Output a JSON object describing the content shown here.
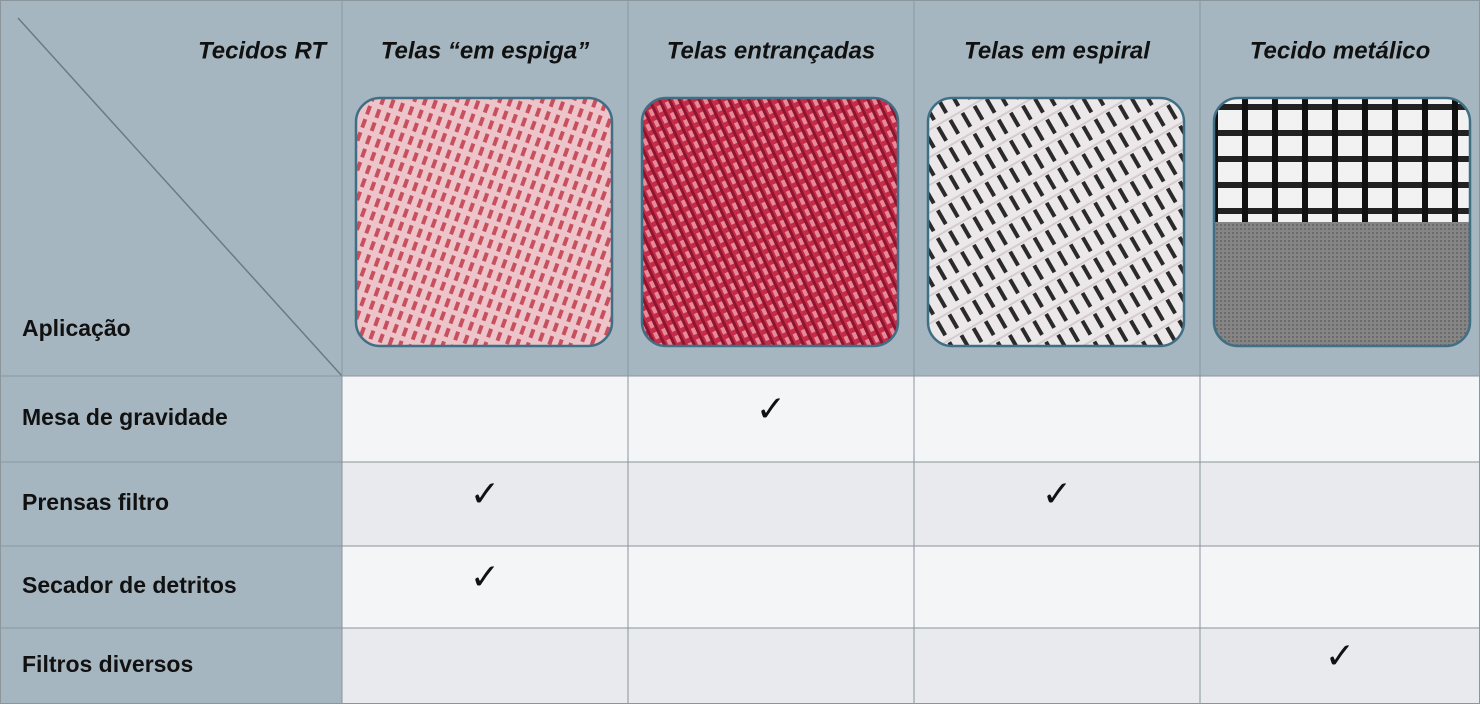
{
  "header": {
    "corner_top": "Tecidos RT",
    "corner_bottom": "Aplicação",
    "columns": [
      "Telas “em espiga”",
      "Telas entrançadas",
      "Telas em espiral",
      "Tecido metálico"
    ]
  },
  "rows": [
    {
      "label": "Mesa de gravidade",
      "cells": [
        null,
        "✓",
        null,
        null
      ]
    },
    {
      "label": "Prensas filtro",
      "cells": [
        "✓",
        null,
        "✓",
        null
      ]
    },
    {
      "label": "Secador de detritos",
      "cells": [
        "✓",
        null,
        null,
        null
      ]
    },
    {
      "label": "Filtros diversos",
      "cells": [
        null,
        null,
        null,
        "✓"
      ]
    }
  ]
}
